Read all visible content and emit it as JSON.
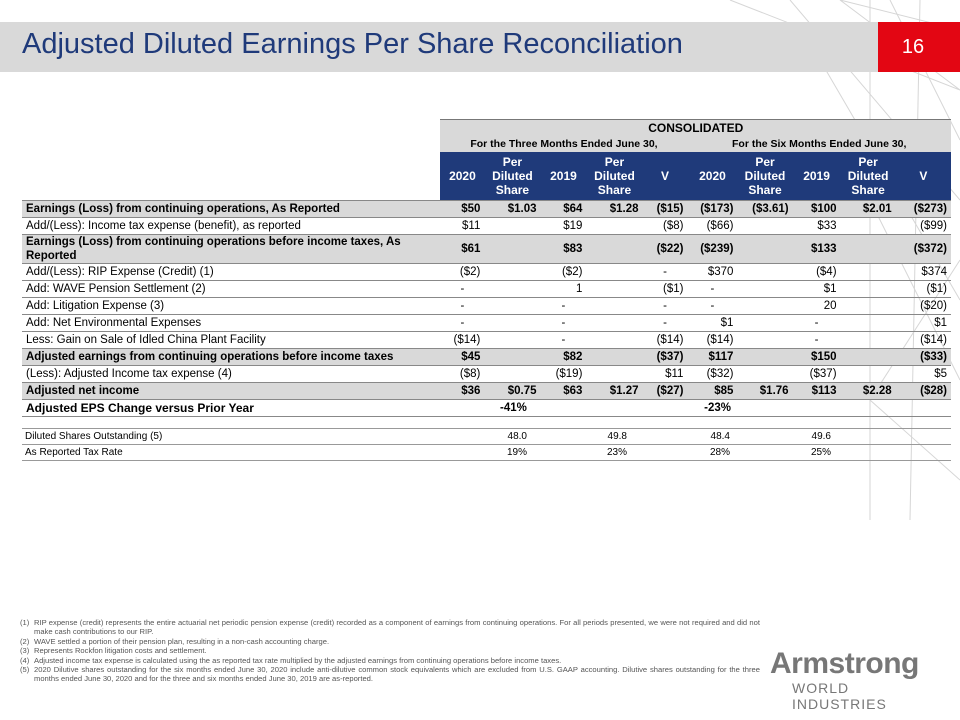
{
  "header": {
    "title": "Adjusted Diluted Earnings Per Share Reconciliation",
    "page_number": "16"
  },
  "table": {
    "consolidated_label": "CONSOLIDATED",
    "period_1": "For the Three Months Ended June 30,",
    "period_2": "For the Six Months Ended June 30,",
    "columns": [
      "2020",
      "Per Diluted Share",
      "2019",
      "Per Diluted Share",
      "V",
      "2020",
      "Per Diluted Share",
      "2019",
      "Per Diluted Share",
      "V"
    ],
    "rows": [
      {
        "label": "Earnings (Loss) from continuing operations, As Reported",
        "values": [
          "$50",
          "$1.03",
          "$64",
          "$1.28",
          "($15)",
          "($173)",
          "($3.61)",
          "$100",
          "$2.01",
          "($273)"
        ]
      },
      {
        "label": "Add/(Less): Income tax expense (benefit), as reported",
        "values": [
          "$11",
          "",
          "$19",
          "",
          "($8)",
          "($66)",
          "",
          "$33",
          "",
          "($99)"
        ]
      },
      {
        "label": "Earnings (Loss) from continuing operations before income taxes, As Reported",
        "values": [
          "$61",
          "",
          "$83",
          "",
          "($22)",
          "($239)",
          "",
          "$133",
          "",
          "($372)"
        ]
      },
      {
        "label": "Add/(Less): RIP Expense (Credit) (1)",
        "values": [
          "($2)",
          "",
          "($2)",
          "",
          "-",
          "$370",
          "",
          "($4)",
          "",
          "$374"
        ]
      },
      {
        "label": "Add: WAVE Pension Settlement (2)",
        "values": [
          "-",
          "",
          "1",
          "",
          "($1)",
          "-",
          "",
          "$1",
          "",
          "($1)"
        ]
      },
      {
        "label": "Add: Litigation Expense (3)",
        "values": [
          "-",
          "",
          "-",
          "",
          "-",
          "-",
          "",
          "20",
          "",
          "($20)"
        ]
      },
      {
        "label": "Add: Net Environmental Expenses",
        "values": [
          "-",
          "",
          "-",
          "",
          "-",
          "$1",
          "",
          "-",
          "",
          "$1"
        ]
      },
      {
        "label": "Less: Gain on Sale of Idled China Plant Facility",
        "values": [
          "($14)",
          "",
          "-",
          "",
          "($14)",
          "($14)",
          "",
          "-",
          "",
          "($14)"
        ]
      },
      {
        "label": "Adjusted earnings from continuing operations before income taxes",
        "values": [
          "$45",
          "",
          "$82",
          "",
          "($37)",
          "$117",
          "",
          "$150",
          "",
          "($33)"
        ]
      },
      {
        "label": "(Less): Adjusted Income tax expense (4)",
        "values": [
          "($8)",
          "",
          "($19)",
          "",
          "$11",
          "($32)",
          "",
          "($37)",
          "",
          "$5"
        ]
      },
      {
        "label": "Adjusted net income",
        "values": [
          "$36",
          "$0.75",
          "$63",
          "$1.27",
          "($27)",
          "$85",
          "$1.76",
          "$113",
          "$2.28",
          "($28)"
        ]
      }
    ],
    "eps_change": {
      "label": "Adjusted EPS Change versus Prior Year",
      "three_months": "-41%",
      "six_months": "-23%"
    }
  },
  "shares_table": [
    {
      "label": "Diluted Shares Outstanding (5)",
      "values": [
        "48.0",
        "49.8",
        "48.4",
        "49.6"
      ]
    },
    {
      "label": "As Reported Tax Rate",
      "values": [
        "19%",
        "23%",
        "28%",
        "25%"
      ]
    }
  ],
  "footnotes": [
    {
      "n": "(1)",
      "text": "RIP expense (credit) represents the entire actuarial net periodic pension expense (credit) recorded as a component of earnings from continuing operations. For all periods presented, we were not required and did not make cash contributions to our RIP."
    },
    {
      "n": "(2)",
      "text": "WAVE settled a portion of their pension plan, resulting in a non-cash accounting charge."
    },
    {
      "n": "(3)",
      "text": "Represents Rockfon litigation costs and settlement."
    },
    {
      "n": "(4)",
      "text": "Adjusted income tax expense is calculated using the as reported tax rate multiplied by the adjusted earnings from continuing operations before income taxes."
    },
    {
      "n": "(5)",
      "text": "2020 Dilutive shares outstanding for the six months ended June 30, 2020 include anti-dilutive common stock equivalents which are excluded from U.S. GAAP accounting. Dilutive shares outstanding for the three months ended June 30, 2020 and for the three and six months ended June 30, 2019 are as-reported."
    }
  ],
  "logo": {
    "name": "Armstrong",
    "subtitle": "WORLD INDUSTRIES"
  },
  "colors": {
    "title": "#1f3a7a",
    "header_fill": "#1f3a7a",
    "accent_red": "#e30613",
    "shade": "#d9d9d9"
  }
}
